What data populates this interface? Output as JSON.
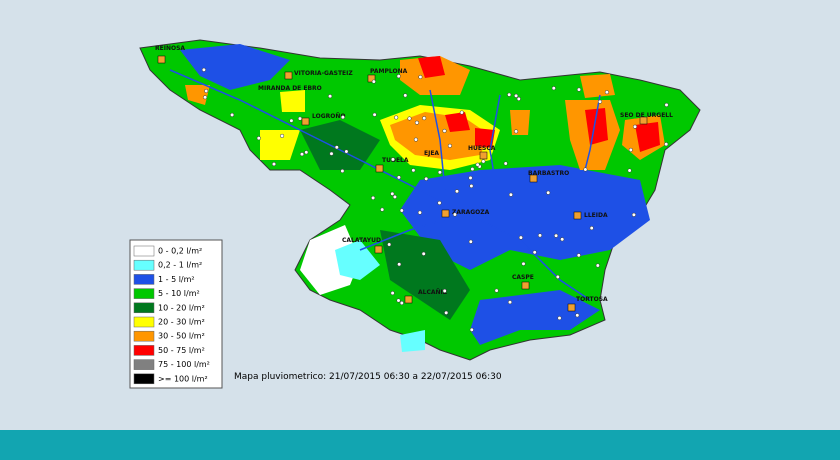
{
  "map": {
    "caption": "Mapa pluviometrico: 21/07/2015 06:30 a 22/07/2015 06:30",
    "legend": [
      {
        "label": "0 - 0,2 l/m²",
        "color": "#ffffff"
      },
      {
        "label": "0,2 - 1 l/m²",
        "color": "#66ffff"
      },
      {
        "label": "1 - 5 l/m²",
        "color": "#1e50e6"
      },
      {
        "label": "5 - 10 l/m²",
        "color": "#00c800"
      },
      {
        "label": "10 - 20 l/m²",
        "color": "#00781e"
      },
      {
        "label": "20 - 30 l/m²",
        "color": "#ffff00"
      },
      {
        "label": "30 - 50 l/m²",
        "color": "#ff9600"
      },
      {
        "label": "50 - 75 l/m²",
        "color": "#ff0000"
      },
      {
        "label": "75 - 100 l/m²",
        "color": "#808080"
      },
      {
        "label": ">= 100 l/m²",
        "color": "#000000"
      }
    ],
    "cities": [
      "REINOSA",
      "VITORIA-GASTEIZ",
      "MIRANDA DE EBRO",
      "PAMPLONA",
      "LOGROÑO",
      "TUDELA",
      "EJEA",
      "HUESCA",
      "BARBASTRO",
      "SEO DE URGELL",
      "LLEIDA",
      "ZARAGOZA",
      "CALATAYUD",
      "CASPE",
      "ALCAÑIZ",
      "TORTOSA"
    ]
  }
}
